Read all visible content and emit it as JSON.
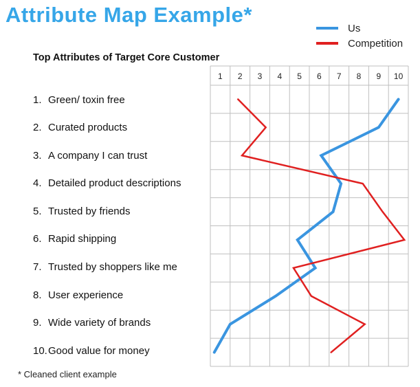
{
  "title": "Attribute Map Example*",
  "subtitle": "Top Attributes of Target Core Customer",
  "footnote": "* Cleaned client example",
  "legend": [
    {
      "label": "Us",
      "color": "#3a95e0"
    },
    {
      "label": "Competition",
      "color": "#e02020"
    }
  ],
  "attributes": [
    {
      "num": "1.",
      "label": "Green/ toxin free"
    },
    {
      "num": "2.",
      "label": "Curated products"
    },
    {
      "num": "3.",
      "label": "A company I can trust"
    },
    {
      "num": "4.",
      "label": "Detailed product descriptions"
    },
    {
      "num": "5.",
      "label": "Trusted by friends"
    },
    {
      "num": "6.",
      "label": "Rapid shipping"
    },
    {
      "num": "7.",
      "label": "Trusted by shoppers like me"
    },
    {
      "num": "8.",
      "label": "User experience"
    },
    {
      "num": "9.",
      "label": "Wide variety of brands"
    },
    {
      "num": "10.",
      "label": "Good value for money"
    }
  ],
  "chart_data": {
    "type": "line",
    "x_ticks": [
      "1",
      "2",
      "3",
      "4",
      "5",
      "6",
      "7",
      "8",
      "9",
      "10"
    ],
    "xlim": [
      0.5,
      10.5
    ],
    "grid": true,
    "categories": [
      "Green/ toxin free",
      "Curated products",
      "A company I can trust",
      "Detailed product descriptions",
      "Trusted by friends",
      "Rapid shipping",
      "Trusted by shoppers like me",
      "User experience",
      "Wide variety of brands",
      "Good value for money"
    ],
    "series": [
      {
        "name": "Us",
        "color": "#3a95e0",
        "values": [
          10,
          9,
          6.1,
          7.1,
          6.7,
          4.9,
          5.8,
          3.8,
          1.5,
          0.7
        ]
      },
      {
        "name": "Competition",
        "color": "#e02020",
        "values": [
          1.9,
          3.3,
          2.1,
          8.2,
          9.2,
          10.3,
          4.7,
          5.6,
          8.3,
          6.6
        ]
      }
    ]
  }
}
